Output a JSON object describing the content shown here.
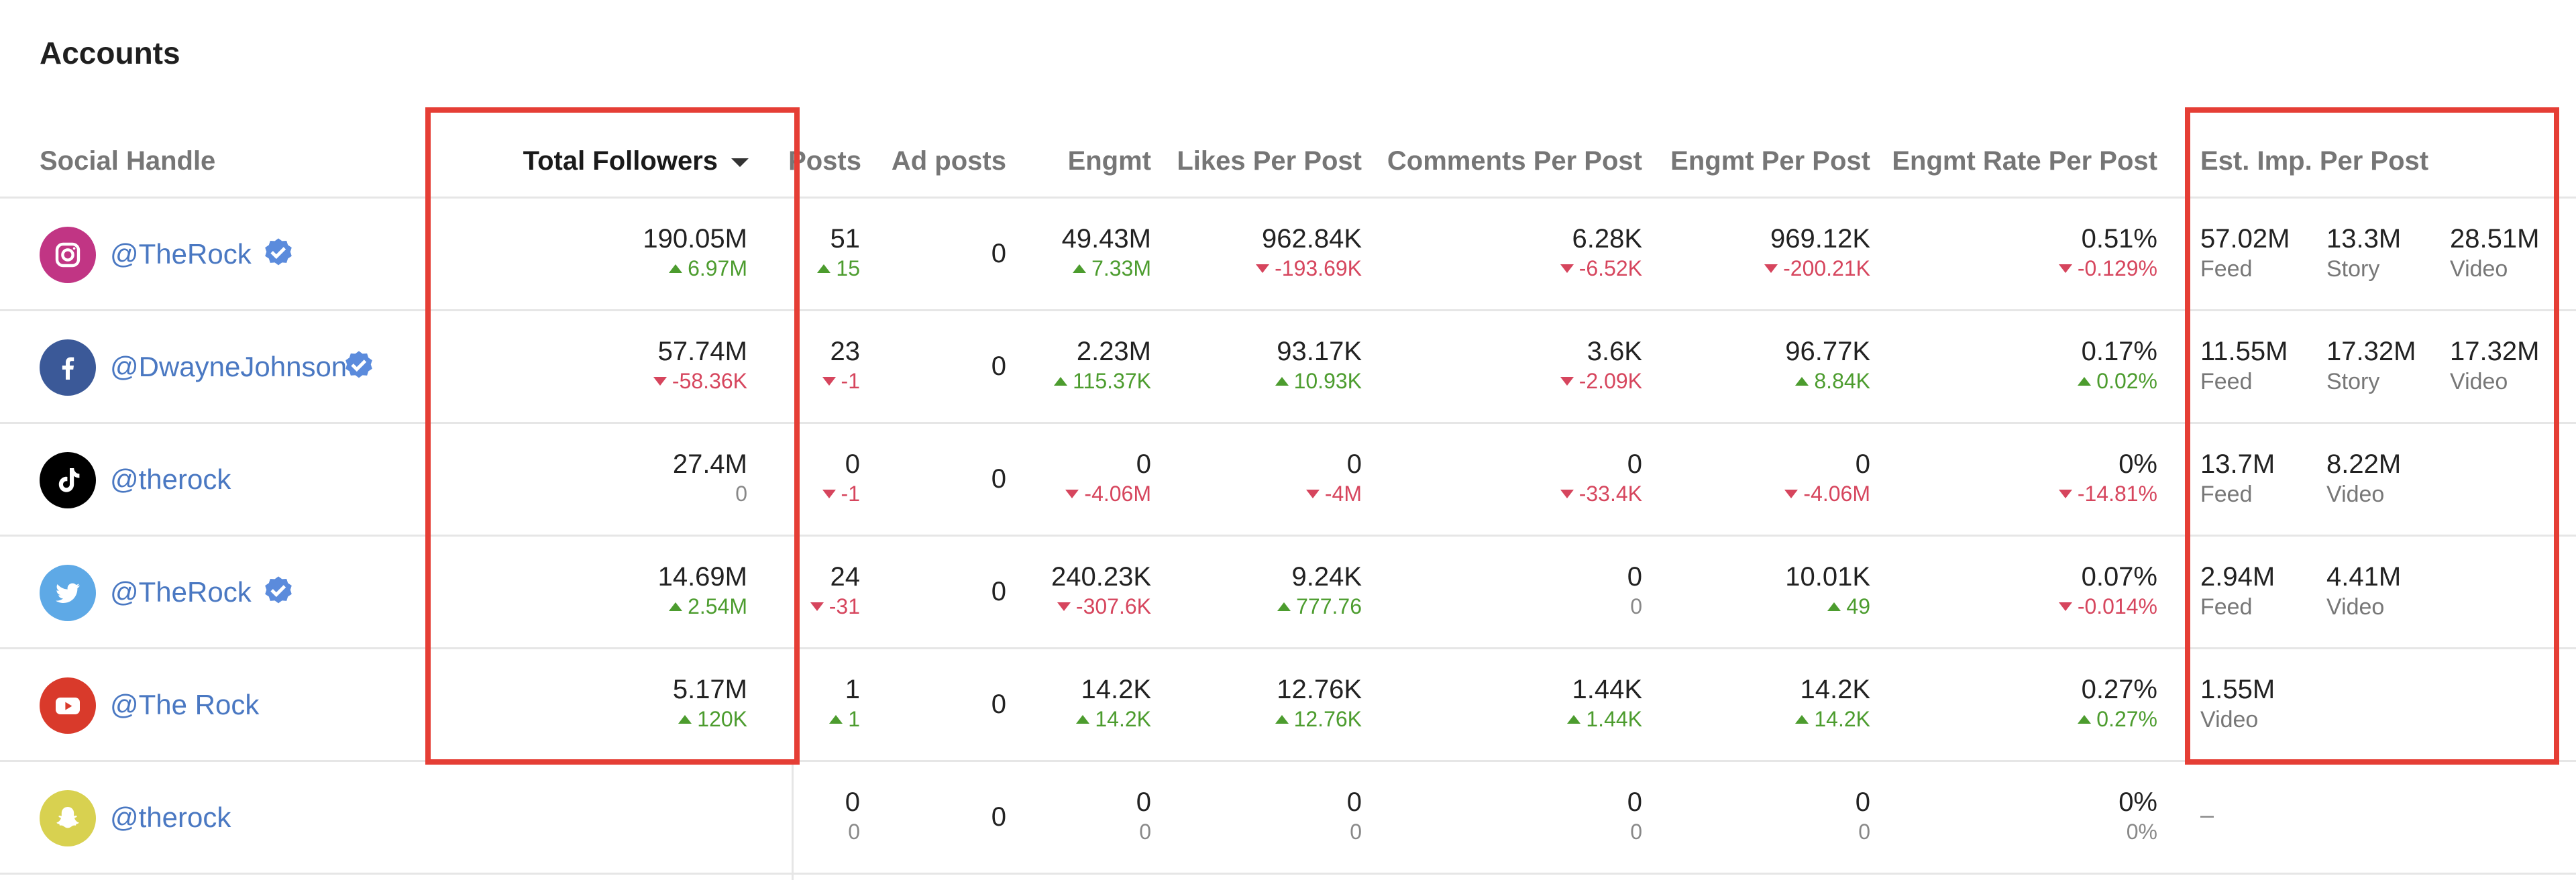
{
  "title": "Accounts",
  "columns": {
    "social_handle": "Social Handle",
    "total_followers": "Total Followers",
    "posts": "Posts",
    "ad_posts": "Ad posts",
    "engmt": "Engmt",
    "likes_per_post": "Likes Per Post",
    "comments_per_post": "Comments Per Post",
    "engmt_per_post": "Engmt Per Post",
    "engmt_rate_per_post": "Engmt Rate Per Post",
    "est_imp_per_post": "Est. Imp. Per Post"
  },
  "colors": {
    "highlight": "#e53e35",
    "up": "#4c9c2e",
    "down": "#d6455d",
    "link": "#4a78c2"
  },
  "rows": [
    {
      "platform": "instagram-icon",
      "platform_color": "#c13584",
      "handle": "@TheRock",
      "verified": true,
      "followers": {
        "value": "190.05M",
        "change": "6.97M",
        "dir": "up"
      },
      "posts": {
        "value": "51",
        "change": "15",
        "dir": "up"
      },
      "ad_posts": "0",
      "engmt": {
        "value": "49.43M",
        "change": "7.33M",
        "dir": "up"
      },
      "likes": {
        "value": "962.84K",
        "change": "-193.69K",
        "dir": "down"
      },
      "comments": {
        "value": "6.28K",
        "change": "-6.52K",
        "dir": "down"
      },
      "engmt_pp": {
        "value": "969.12K",
        "change": "-200.21K",
        "dir": "down"
      },
      "engmt_rate": {
        "value": "0.51%",
        "change": "-0.129%",
        "dir": "down"
      },
      "imp": [
        {
          "value": "57.02M",
          "label": "Feed"
        },
        {
          "value": "13.3M",
          "label": "Story"
        },
        {
          "value": "28.51M",
          "label": "Video"
        }
      ]
    },
    {
      "platform": "facebook-icon",
      "platform_color": "#3b5998",
      "handle": "@DwayneJohnson",
      "verified": true,
      "followers": {
        "value": "57.74M",
        "change": "-58.36K",
        "dir": "down"
      },
      "posts": {
        "value": "23",
        "change": "-1",
        "dir": "down"
      },
      "ad_posts": "0",
      "engmt": {
        "value": "2.23M",
        "change": "115.37K",
        "dir": "up"
      },
      "likes": {
        "value": "93.17K",
        "change": "10.93K",
        "dir": "up"
      },
      "comments": {
        "value": "3.6K",
        "change": "-2.09K",
        "dir": "down"
      },
      "engmt_pp": {
        "value": "96.77K",
        "change": "8.84K",
        "dir": "up"
      },
      "engmt_rate": {
        "value": "0.17%",
        "change": "0.02%",
        "dir": "up"
      },
      "imp": [
        {
          "value": "11.55M",
          "label": "Feed"
        },
        {
          "value": "17.32M",
          "label": "Story"
        },
        {
          "value": "17.32M",
          "label": "Video"
        }
      ]
    },
    {
      "platform": "tiktok-icon",
      "platform_color": "#000000",
      "handle": "@therock",
      "verified": false,
      "followers": {
        "value": "27.4M",
        "change": "0",
        "dir": "none"
      },
      "posts": {
        "value": "0",
        "change": "-1",
        "dir": "down"
      },
      "ad_posts": "0",
      "engmt": {
        "value": "0",
        "change": "-4.06M",
        "dir": "down"
      },
      "likes": {
        "value": "0",
        "change": "-4M",
        "dir": "down"
      },
      "comments": {
        "value": "0",
        "change": "-33.4K",
        "dir": "down"
      },
      "engmt_pp": {
        "value": "0",
        "change": "-4.06M",
        "dir": "down"
      },
      "engmt_rate": {
        "value": "0%",
        "change": "-14.81%",
        "dir": "down"
      },
      "imp": [
        {
          "value": "13.7M",
          "label": "Feed"
        },
        {
          "value": "8.22M",
          "label": "Video"
        }
      ]
    },
    {
      "platform": "twitter-icon",
      "platform_color": "#5ea9e6",
      "handle": "@TheRock",
      "verified": true,
      "followers": {
        "value": "14.69M",
        "change": "2.54M",
        "dir": "up"
      },
      "posts": {
        "value": "24",
        "change": "-31",
        "dir": "down"
      },
      "ad_posts": "0",
      "engmt": {
        "value": "240.23K",
        "change": "-307.6K",
        "dir": "down"
      },
      "likes": {
        "value": "9.24K",
        "change": "777.76",
        "dir": "up"
      },
      "comments": {
        "value": "0",
        "change": "0",
        "dir": "none"
      },
      "engmt_pp": {
        "value": "10.01K",
        "change": "49",
        "dir": "up"
      },
      "engmt_rate": {
        "value": "0.07%",
        "change": "-0.014%",
        "dir": "down"
      },
      "imp": [
        {
          "value": "2.94M",
          "label": "Feed"
        },
        {
          "value": "4.41M",
          "label": "Video"
        }
      ]
    },
    {
      "platform": "youtube-icon",
      "platform_color": "#d93a2b",
      "handle": "@The Rock",
      "verified": false,
      "followers": {
        "value": "5.17M",
        "change": "120K",
        "dir": "up"
      },
      "posts": {
        "value": "1",
        "change": "1",
        "dir": "up"
      },
      "ad_posts": "0",
      "engmt": {
        "value": "14.2K",
        "change": "14.2K",
        "dir": "up"
      },
      "likes": {
        "value": "12.76K",
        "change": "12.76K",
        "dir": "up"
      },
      "comments": {
        "value": "1.44K",
        "change": "1.44K",
        "dir": "up"
      },
      "engmt_pp": {
        "value": "14.2K",
        "change": "14.2K",
        "dir": "up"
      },
      "engmt_rate": {
        "value": "0.27%",
        "change": "0.27%",
        "dir": "up"
      },
      "imp": [
        {
          "value": "1.55M",
          "label": "Video"
        }
      ]
    },
    {
      "platform": "snapchat-icon",
      "platform_color": "#d8d150",
      "handle": "@therock",
      "verified": false,
      "followers": null,
      "posts": {
        "value": "0",
        "change": "0",
        "dir": "none"
      },
      "ad_posts": "0",
      "engmt": {
        "value": "0",
        "change": "0",
        "dir": "none"
      },
      "likes": {
        "value": "0",
        "change": "0",
        "dir": "none"
      },
      "comments": {
        "value": "0",
        "change": "0",
        "dir": "none"
      },
      "engmt_pp": {
        "value": "0",
        "change": "0",
        "dir": "none"
      },
      "engmt_rate": {
        "value": "0%",
        "change": "0%",
        "dir": "none"
      },
      "imp": [],
      "imp_empty": "–"
    }
  ]
}
